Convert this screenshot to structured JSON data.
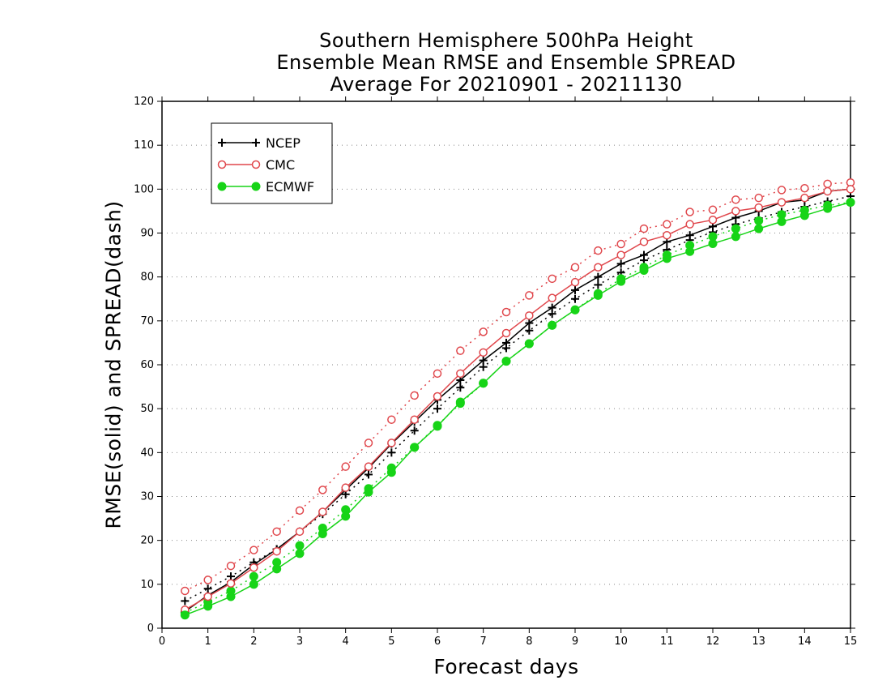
{
  "chart_data": {
    "type": "line",
    "title": [
      "Southern Hemisphere 500hPa Height",
      "Ensemble Mean RMSE and Ensemble SPREAD",
      "Average For 20210901 - 20211130"
    ],
    "xlabel": "Forecast days",
    "ylabel": "RMSE(solid) and SPREAD(dash)",
    "xlim": [
      0,
      15
    ],
    "ylim": [
      0,
      120
    ],
    "x_ticks": [
      0,
      1,
      2,
      3,
      4,
      5,
      6,
      7,
      8,
      9,
      10,
      11,
      12,
      13,
      14,
      15
    ],
    "y_ticks": [
      0,
      10,
      20,
      30,
      40,
      50,
      60,
      70,
      80,
      90,
      100,
      110,
      120
    ],
    "grid": "horizontal dotted",
    "legend_position": "top-left",
    "x": [
      0.5,
      1,
      1.5,
      2,
      2.5,
      3,
      3.5,
      4,
      4.5,
      5,
      5.5,
      6,
      6.5,
      7,
      7.5,
      8,
      8.5,
      9,
      9.5,
      10,
      10.5,
      11,
      11.5,
      12,
      12.5,
      13,
      13.5,
      14,
      14.5,
      15
    ],
    "series": [
      {
        "name": "NCEP",
        "metric": "RMSE",
        "style": "solid",
        "marker": "plus",
        "color": "#000000",
        "values": [
          3.8,
          7.5,
          10.5,
          14.5,
          18.0,
          22.0,
          26.5,
          31.5,
          36.5,
          42.0,
          47.0,
          52.0,
          56.5,
          61.0,
          65.0,
          69.5,
          73.0,
          77.0,
          80.0,
          83.0,
          85.0,
          88.0,
          89.5,
          91.5,
          93.5,
          95.0,
          97.0,
          97.5,
          99.5,
          100.0
        ]
      },
      {
        "name": "NCEP",
        "metric": "SPREAD",
        "style": "dash",
        "marker": "plus",
        "color": "#000000",
        "values": [
          6.2,
          9.0,
          11.8,
          15.0,
          18.0,
          22.0,
          26.0,
          30.5,
          35.0,
          40.0,
          45.0,
          50.0,
          54.8,
          59.5,
          63.8,
          67.8,
          71.6,
          75.0,
          78.2,
          81.0,
          83.8,
          86.2,
          88.4,
          90.2,
          92.0,
          93.4,
          94.8,
          96.0,
          97.2,
          98.4
        ]
      },
      {
        "name": "CMC",
        "metric": "RMSE",
        "style": "solid",
        "marker": "open-circle",
        "color": "#e0474c",
        "values": [
          4.2,
          7.2,
          10.2,
          13.8,
          17.5,
          22.0,
          26.5,
          32.0,
          36.8,
          42.2,
          47.5,
          52.8,
          58.0,
          62.8,
          67.2,
          71.2,
          75.2,
          78.8,
          82.2,
          85.0,
          88.0,
          89.5,
          92.0,
          93.0,
          95.0,
          95.8,
          97.0,
          98.0,
          99.5,
          100.0
        ]
      },
      {
        "name": "CMC",
        "metric": "SPREAD",
        "style": "dash",
        "marker": "open-circle",
        "color": "#e0474c",
        "values": [
          8.5,
          11.0,
          14.2,
          17.8,
          22.0,
          26.8,
          31.5,
          36.8,
          42.2,
          47.5,
          53.0,
          58.0,
          63.2,
          67.5,
          72.0,
          75.8,
          79.6,
          82.2,
          86.0,
          87.5,
          91.0,
          92.0,
          94.8,
          95.3,
          97.6,
          98.0,
          99.8,
          100.2,
          101.2,
          101.5
        ]
      },
      {
        "name": "ECMWF",
        "metric": "RMSE",
        "style": "solid",
        "marker": "filled-circle",
        "color": "#17d417",
        "values": [
          3.0,
          5.0,
          7.2,
          10.0,
          13.5,
          17.0,
          21.5,
          25.5,
          31.0,
          35.5,
          41.2,
          46.0,
          51.5,
          55.8,
          60.8,
          64.8,
          69.0,
          72.5,
          75.8,
          79.0,
          81.5,
          84.2,
          85.8,
          87.6,
          89.2,
          91.0,
          92.6,
          94.0,
          95.6,
          97.0
        ]
      },
      {
        "name": "ECMWF",
        "metric": "SPREAD",
        "style": "dash",
        "marker": "filled-circle",
        "color": "#17d417",
        "values": [
          3.5,
          6.0,
          8.5,
          11.8,
          15.0,
          18.8,
          22.8,
          27.0,
          31.8,
          36.5,
          41.2,
          46.2,
          51.2,
          55.8,
          60.8,
          64.8,
          69.0,
          72.5,
          76.2,
          79.6,
          82.2,
          85.0,
          87.2,
          89.2,
          91.0,
          92.8,
          94.2,
          95.2,
          96.3,
          97.0
        ]
      }
    ],
    "legend": [
      {
        "label": "NCEP",
        "marker": "plus",
        "color": "#000000"
      },
      {
        "label": "CMC",
        "marker": "open-circle",
        "color": "#e0474c"
      },
      {
        "label": "ECMWF",
        "marker": "filled-circle",
        "color": "#17d417"
      }
    ]
  }
}
